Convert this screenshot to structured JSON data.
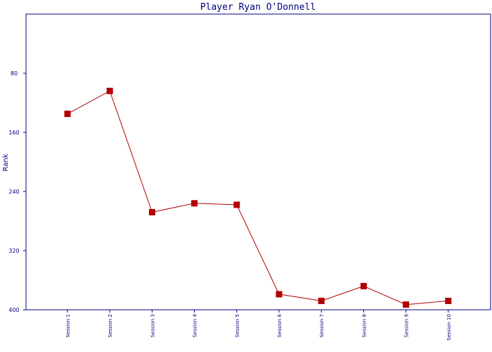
{
  "chart_data": {
    "type": "line",
    "title": "Player Ryan O'Donnell",
    "xlabel": "",
    "ylabel": "Rank",
    "y_inverted": true,
    "ylim": [
      400,
      0
    ],
    "yticks": [
      80,
      160,
      240,
      320,
      400
    ],
    "categories": [
      "Session 1",
      "Session 2",
      "Session 3",
      "Session 4",
      "Session 5",
      "Session 6",
      "Session 7",
      "Session 8",
      "Session 9",
      "Session 10"
    ],
    "series": [
      {
        "values": [
          135,
          104,
          268,
          256,
          258,
          379,
          388,
          368,
          393,
          388
        ]
      }
    ],
    "grid": false,
    "legend": "none",
    "colors": {
      "line": "#b00000",
      "marker": "#b00000",
      "axis": "#000080",
      "text": "#000080",
      "background": "#ffffff"
    }
  }
}
